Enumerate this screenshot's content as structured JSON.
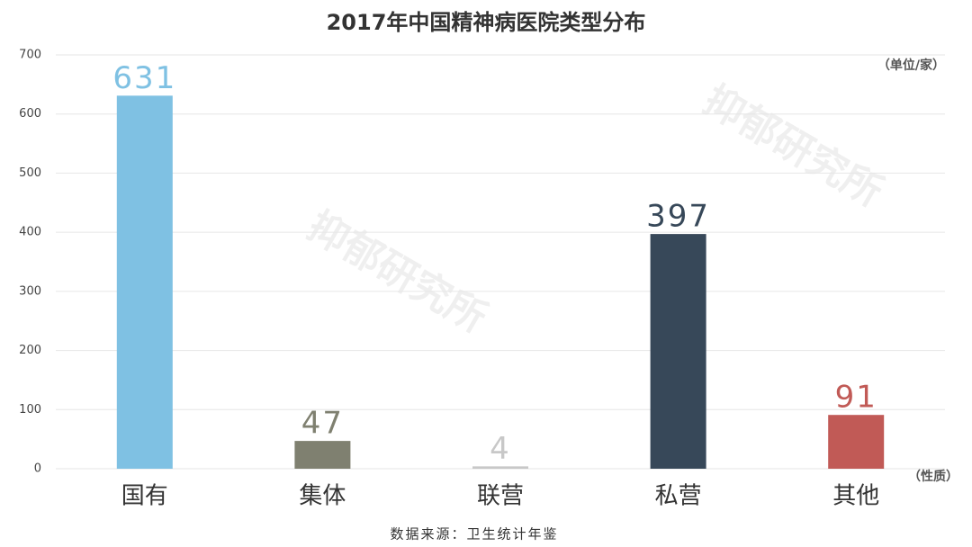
{
  "chart_data": {
    "type": "bar",
    "title": "2017年中国精神病医院类型分布",
    "y_unit": "（单位/家）",
    "x_unit": "（性质）",
    "source": "数据来源：卫生统计年鉴",
    "watermark": "抑郁研究所",
    "categories": [
      "国有",
      "集体",
      "联营",
      "私营",
      "其他"
    ],
    "values": [
      631,
      47,
      4,
      397,
      91
    ],
    "colors": [
      "#7fc1e3",
      "#7f8070",
      "#c8c8c8",
      "#374859",
      "#c15a56"
    ],
    "ylim": [
      0,
      700
    ],
    "yticks": [
      0,
      100,
      200,
      300,
      400,
      500,
      600,
      700
    ],
    "grid": true
  }
}
